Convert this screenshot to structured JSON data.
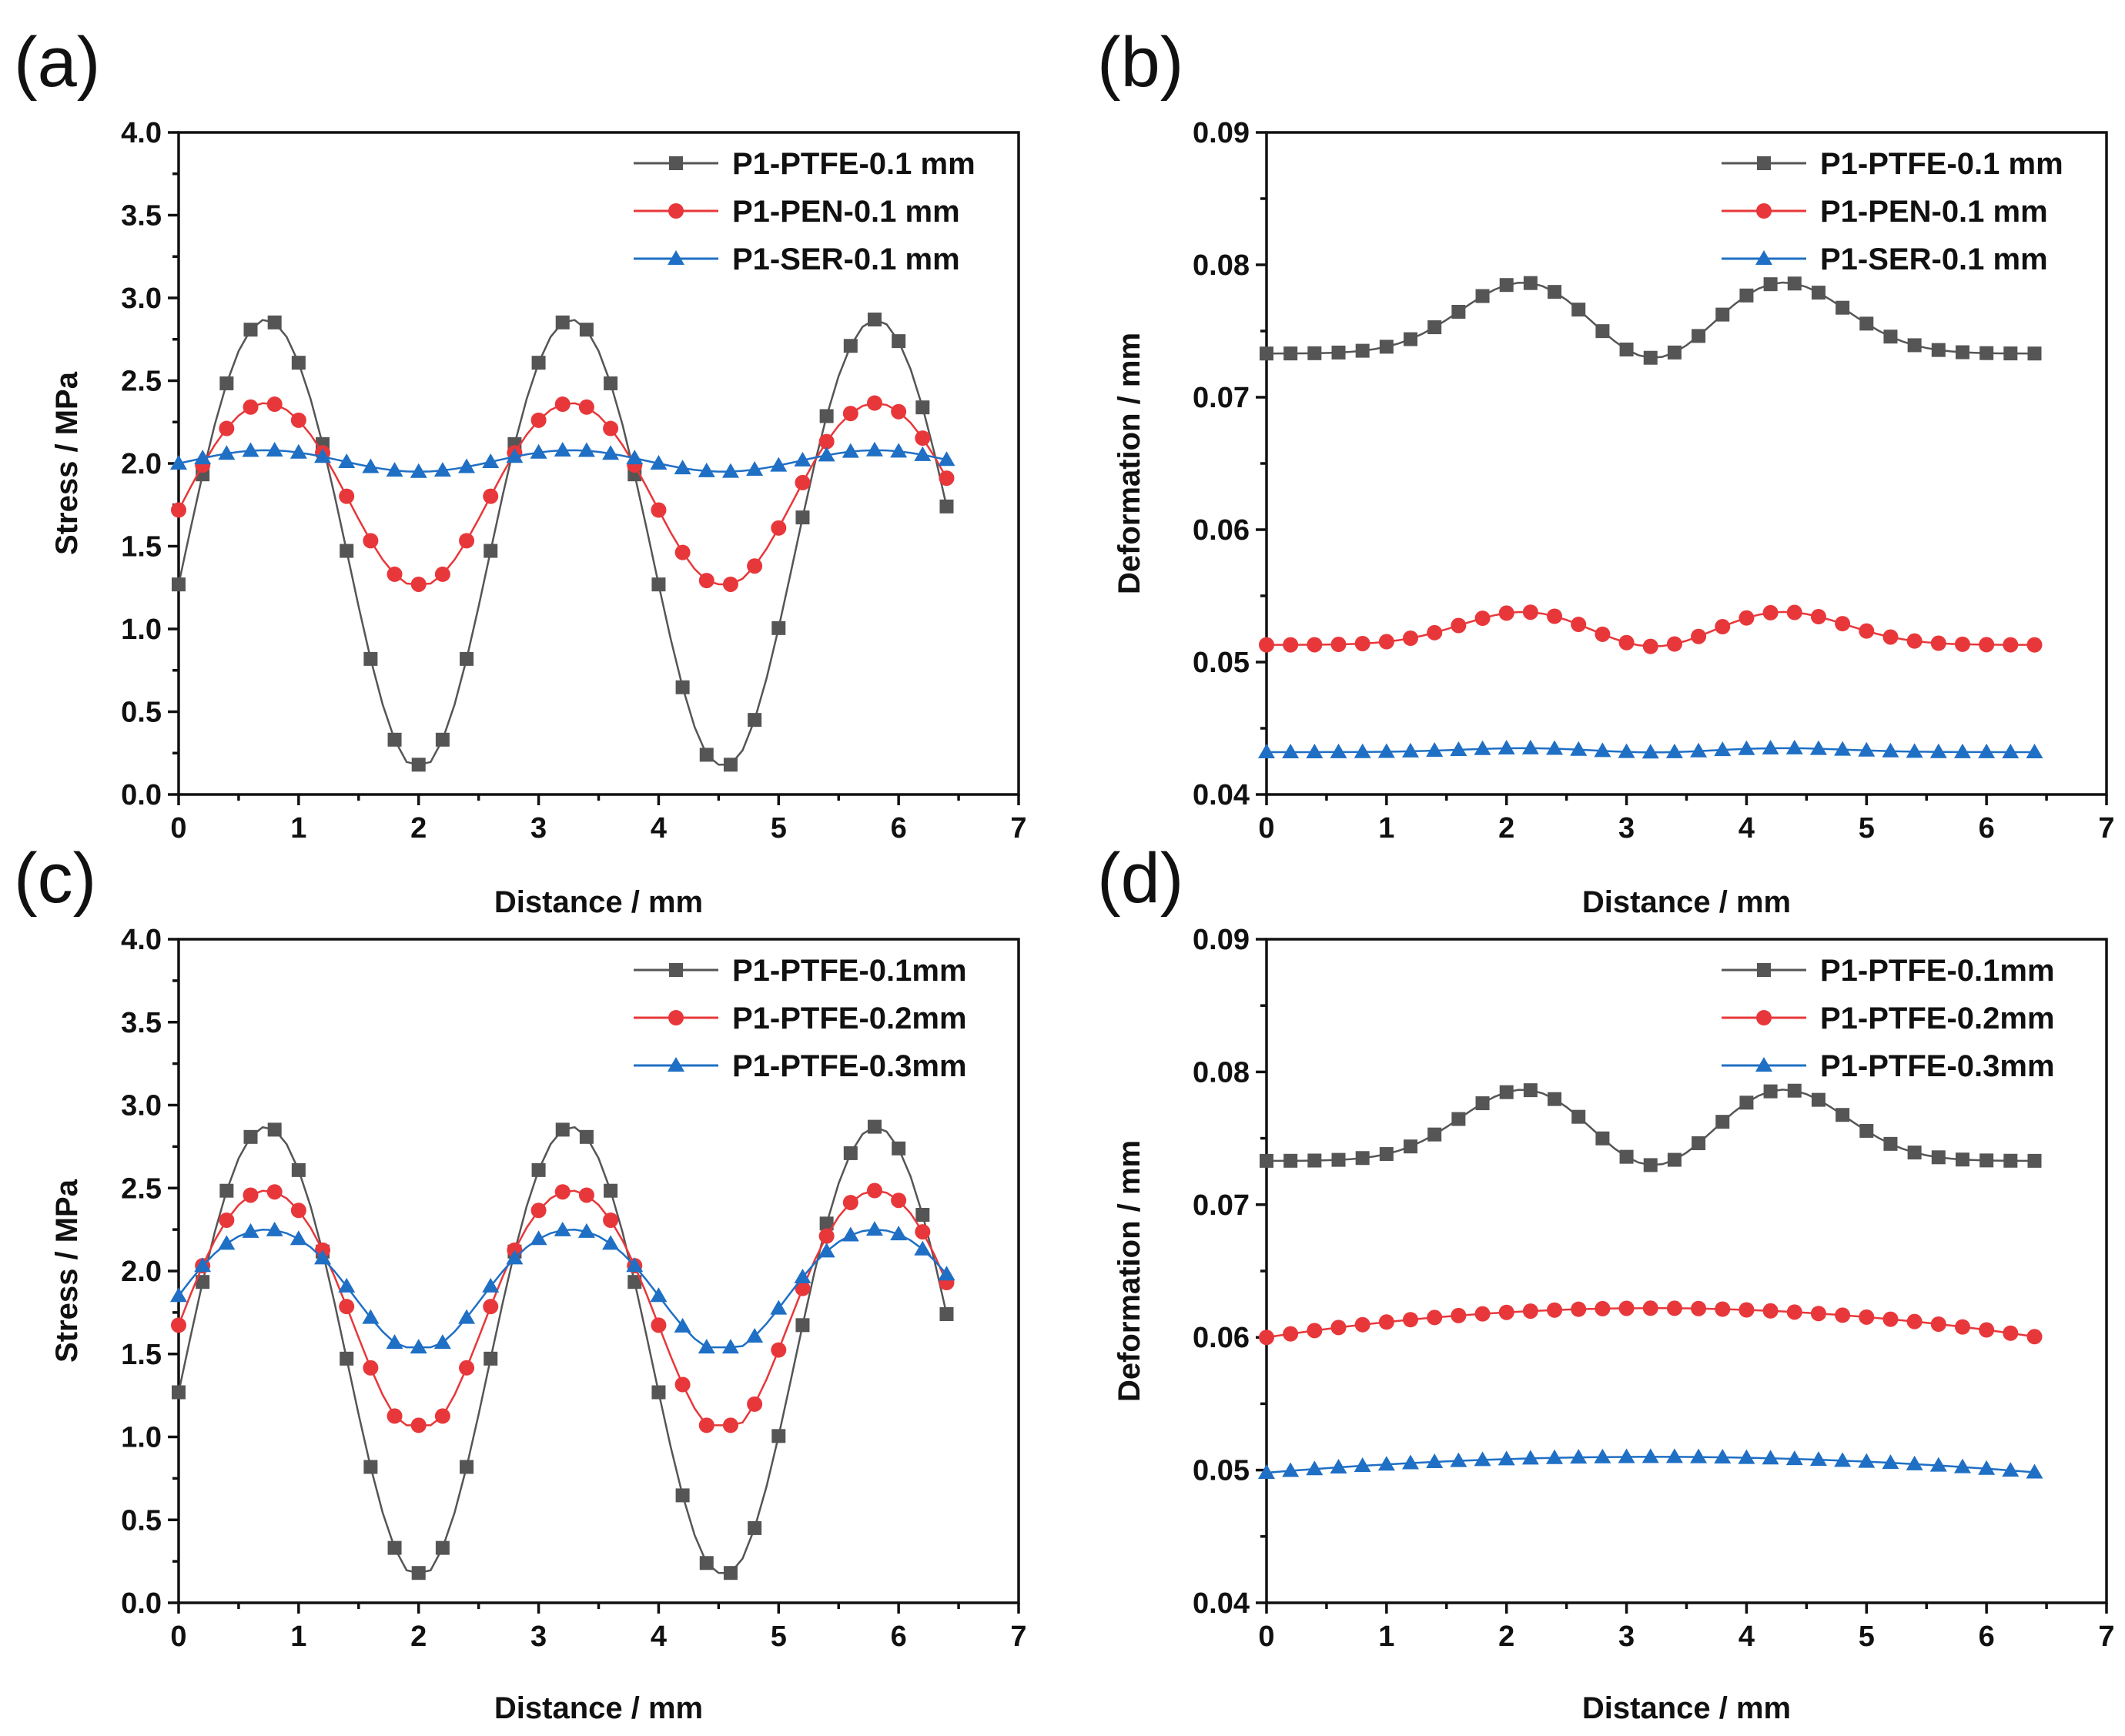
{
  "chart_data": [
    {
      "panel": "(a)",
      "type": "line",
      "xlabel": "Distance / mm",
      "ylabel": "Stress / MPa",
      "xlim": [
        0,
        7
      ],
      "ylim": [
        0.0,
        4.0
      ],
      "xticks": [
        "0",
        "1",
        "2",
        "3",
        "4",
        "5",
        "6",
        "7"
      ],
      "yticks": [
        "0.0",
        "0.5",
        "1.0",
        "1.5",
        "2.0",
        "2.5",
        "3.0",
        "3.5",
        "4.0"
      ],
      "legend_position": "top-right",
      "series": [
        {
          "name": "P1-PTFE-0.1 mm",
          "color": "#555555",
          "marker": "square",
          "kind": "stress_deep",
          "baseline": 1.55,
          "amplitude": 1.36,
          "harmonic": 0.04,
          "min": 0.18
        },
        {
          "name": "P1-PEN-0.1 mm",
          "color": "#e8373a",
          "marker": "circle",
          "kind": "stress_deep",
          "baseline": 1.83,
          "amplitude": 0.555,
          "harmonic": 0.02,
          "min": 1.27
        },
        {
          "name": "P1-SER-0.1 mm",
          "color": "#1f6fc5",
          "marker": "triangle",
          "kind": "stress_deep",
          "baseline": 2.015,
          "amplitude": 0.065,
          "harmonic": 0.0,
          "min": 1.95
        }
      ]
    },
    {
      "panel": "(b)",
      "type": "line",
      "xlabel": "Distance / mm",
      "ylabel": "Deformation / mm",
      "xlim": [
        0,
        7
      ],
      "ylim": [
        0.04,
        0.09
      ],
      "xticks": [
        "0",
        "1",
        "2",
        "3",
        "4",
        "5",
        "6",
        "7"
      ],
      "yticks": [
        "0.04",
        "0.05",
        "0.06",
        "0.07",
        "0.08",
        "0.09"
      ],
      "legend_position": "top-right",
      "series": [
        {
          "name": "P1-PTFE-0.1 mm",
          "color": "#555555",
          "marker": "square",
          "kind": "deform_double",
          "edge": 0.0733,
          "peak": 0.0787,
          "middle": 0.0769
        },
        {
          "name": "P1-PEN-0.1 mm",
          "color": "#e8373a",
          "marker": "circle",
          "kind": "deform_double",
          "edge": 0.0513,
          "peak": 0.0538,
          "middle": 0.053
        },
        {
          "name": "P1-SER-0.1 mm",
          "color": "#1f6fc5",
          "marker": "triangle",
          "kind": "deform_double",
          "edge": 0.0432,
          "peak": 0.0435,
          "middle": 0.0434
        }
      ]
    },
    {
      "panel": "(c)",
      "type": "line",
      "xlabel": "Distance / mm",
      "ylabel": "Stress / MPa",
      "xlim": [
        0,
        7
      ],
      "ylim": [
        0.0,
        4.0
      ],
      "xticks": [
        "0",
        "1",
        "2",
        "3",
        "4",
        "5",
        "6",
        "7"
      ],
      "yticks": [
        "0.0",
        "0.5",
        "1.0",
        "1.5",
        "2.0",
        "2.5",
        "3.0",
        "3.5",
        "4.0"
      ],
      "legend_position": "top-right",
      "series": [
        {
          "name": "P1-PTFE-0.1mm",
          "color": "#555555",
          "marker": "square",
          "kind": "stress_deep",
          "baseline": 1.55,
          "amplitude": 1.36,
          "harmonic": 0.04,
          "min": 0.18
        },
        {
          "name": "P1-PTFE-0.2mm",
          "color": "#e8373a",
          "marker": "circle",
          "kind": "stress_deep",
          "baseline": 1.8,
          "amplitude": 0.735,
          "harmonic": 0.05,
          "min": 1.07
        },
        {
          "name": "P1-PTFE-0.3mm",
          "color": "#1f6fc5",
          "marker": "triangle",
          "kind": "stress_deep",
          "baseline": 1.91,
          "amplitude": 0.37,
          "harmonic": 0.03,
          "min": 1.54
        }
      ]
    },
    {
      "panel": "(d)",
      "type": "line",
      "xlabel": "Distance / mm",
      "ylabel": "Deformation / mm",
      "xlim": [
        0,
        7
      ],
      "ylim": [
        0.04,
        0.09
      ],
      "xticks": [
        "0",
        "1",
        "2",
        "3",
        "4",
        "5",
        "6",
        "7"
      ],
      "yticks": [
        "0.04",
        "0.05",
        "0.06",
        "0.07",
        "0.08",
        "0.09"
      ],
      "legend_position": "top-right",
      "series": [
        {
          "name": "P1-PTFE-0.1mm",
          "color": "#555555",
          "marker": "square",
          "kind": "deform_double",
          "edge": 0.0733,
          "peak": 0.0787,
          "middle": 0.0769
        },
        {
          "name": "P1-PTFE-0.2mm",
          "color": "#e8373a",
          "marker": "circle",
          "kind": "deform_single",
          "edge": 0.06,
          "peak": 0.0622
        },
        {
          "name": "P1-PTFE-0.3mm",
          "color": "#1f6fc5",
          "marker": "triangle",
          "kind": "deform_single",
          "edge": 0.0498,
          "peak": 0.051
        }
      ]
    }
  ]
}
